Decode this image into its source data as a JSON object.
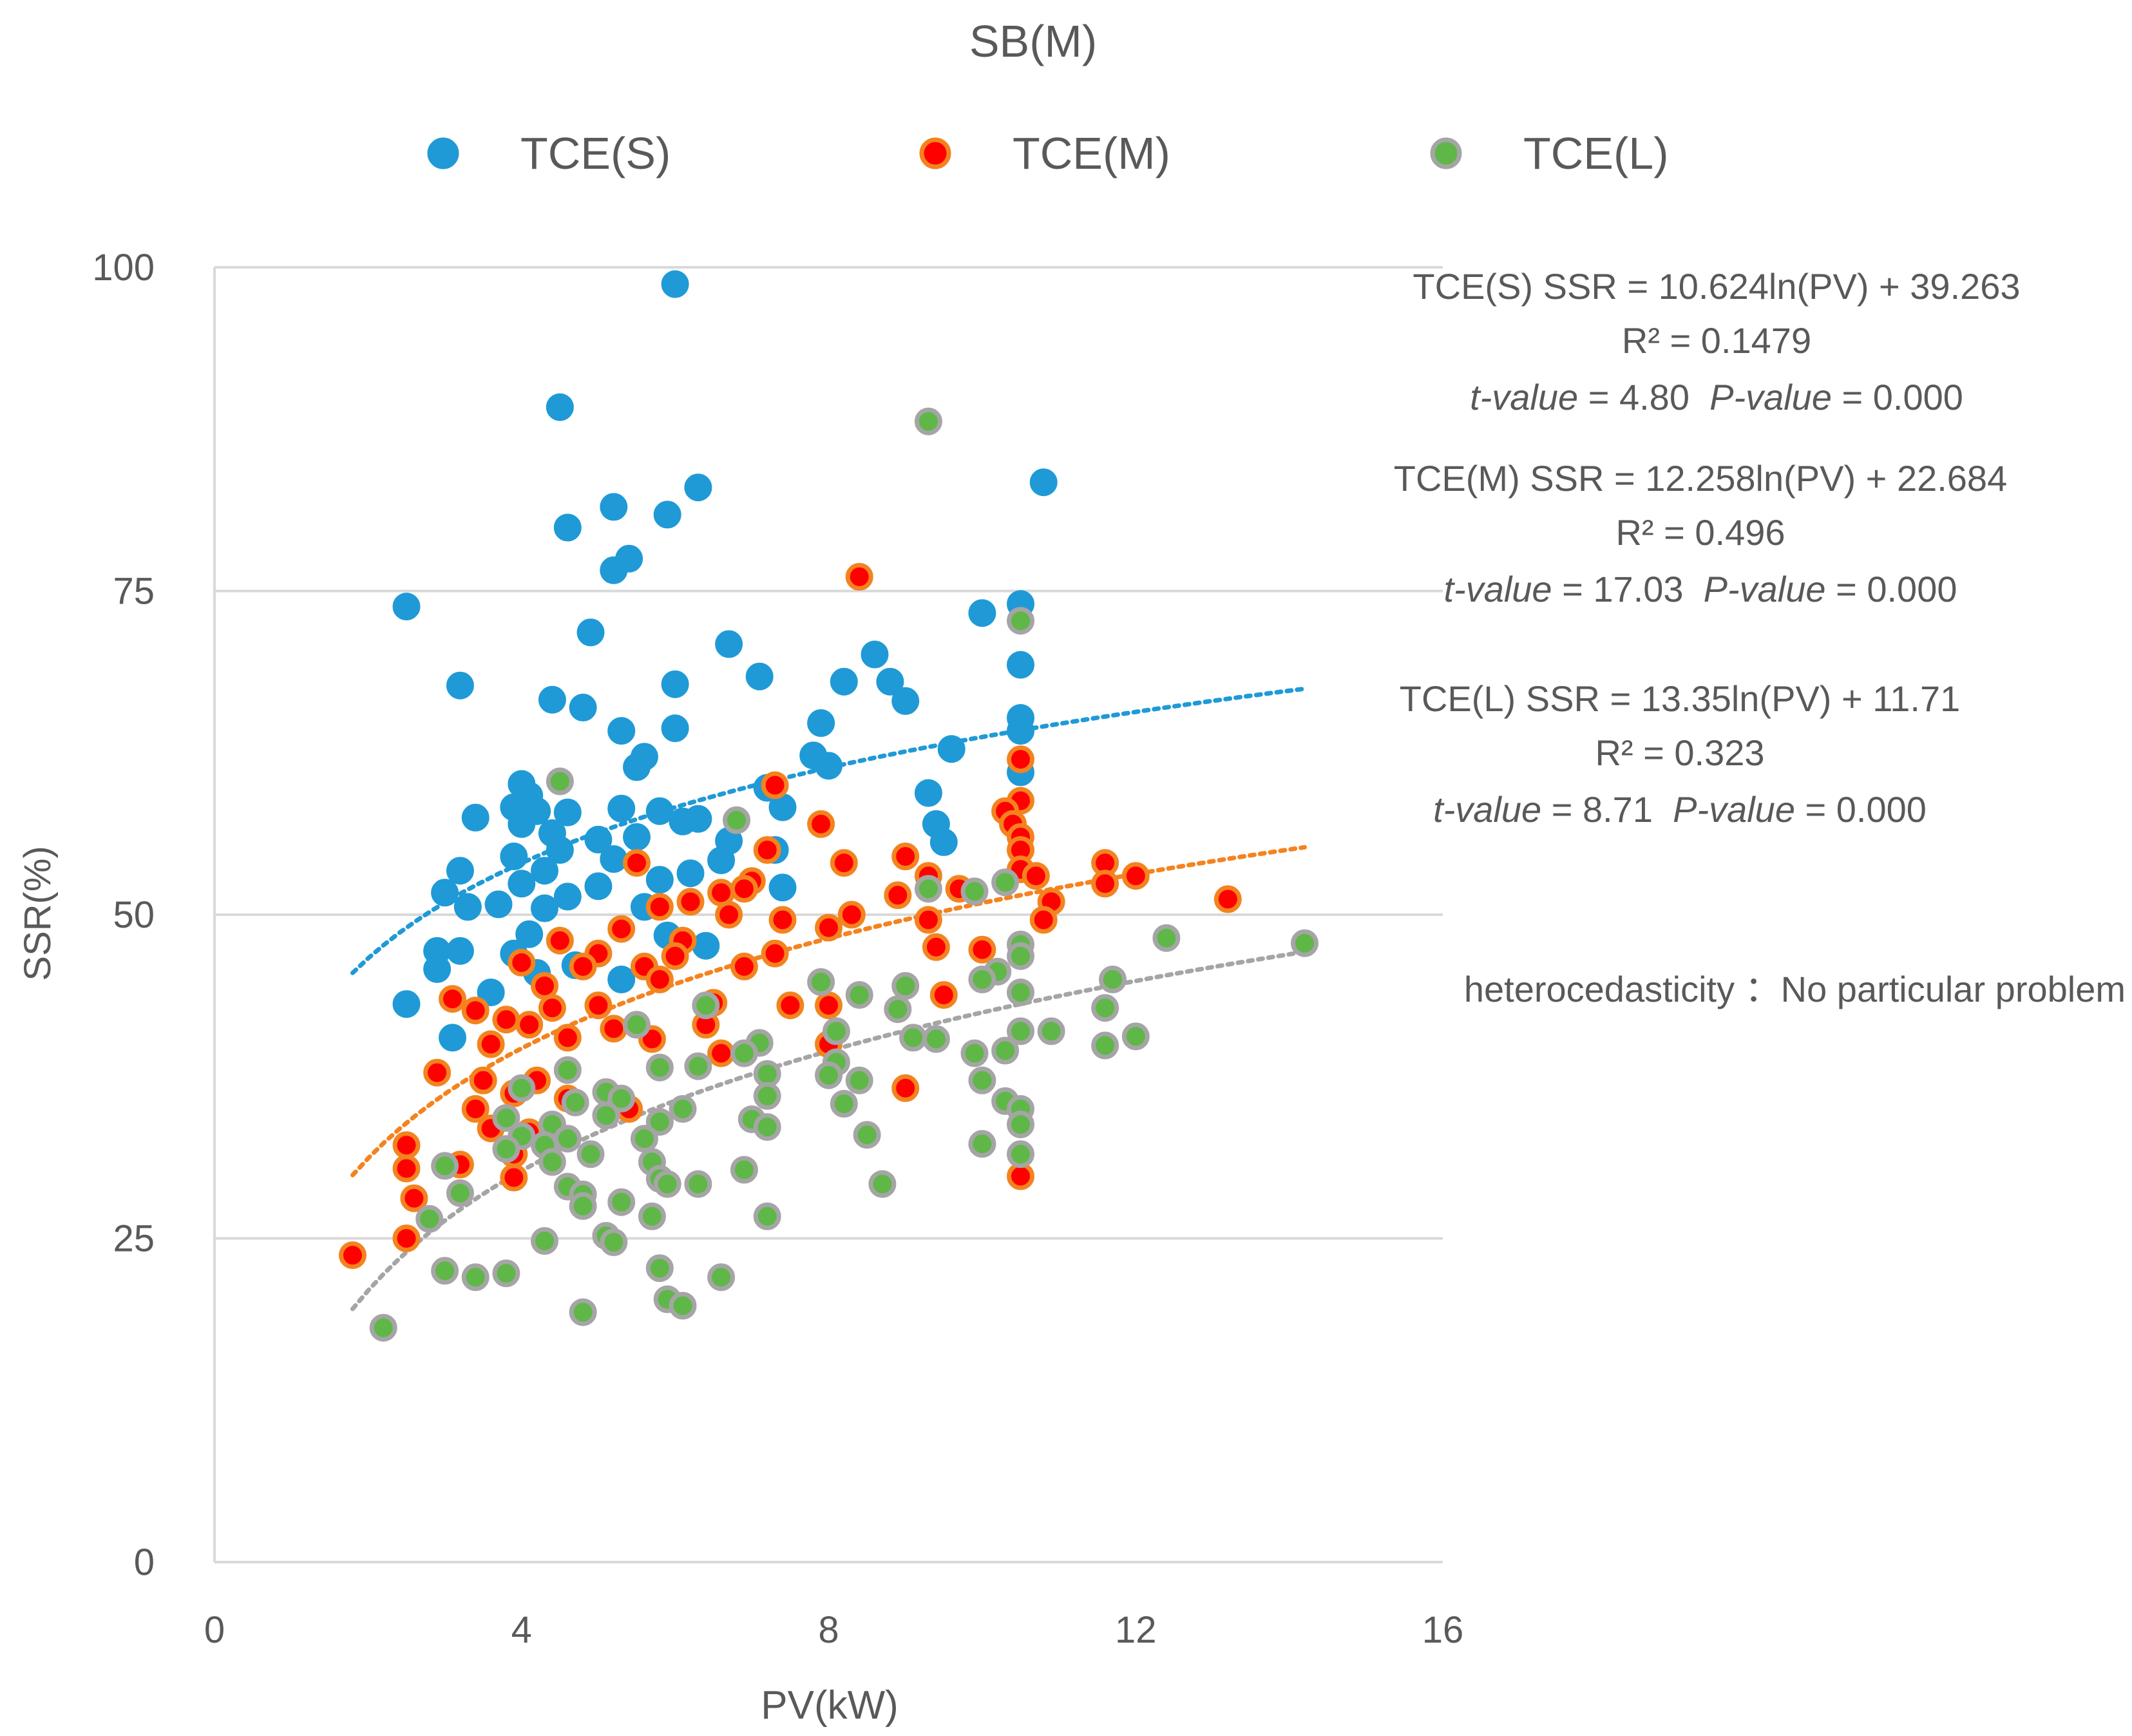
{
  "chart_data": {
    "type": "scatter",
    "title": "SB(M)",
    "xlabel": "PV(kW)",
    "ylabel": "SSR(%)",
    "xlim": [
      0,
      16
    ],
    "ylim": [
      0,
      100
    ],
    "x_ticks": [
      "0",
      "4",
      "8",
      "12",
      "16"
    ],
    "y_ticks": [
      "0",
      "25",
      "50",
      "75",
      "100"
    ],
    "grid": "horizontal",
    "legend_position": "top",
    "series": [
      {
        "name": "TCE(S)",
        "marker_color": "#1f9ad6",
        "marker_edge": "#1f9ad6",
        "trend_color": "#1f9ad6",
        "trend": {
          "a": 10.624,
          "b": 39.263,
          "x_from": 1.8,
          "x_to": 14.2
        },
        "points": [
          [
            6.0,
            98.7
          ],
          [
            4.5,
            89.2
          ],
          [
            10.8,
            83.4
          ],
          [
            6.3,
            83.0
          ],
          [
            5.2,
            81.5
          ],
          [
            5.9,
            80.9
          ],
          [
            4.6,
            79.9
          ],
          [
            5.4,
            77.5
          ],
          [
            5.2,
            76.6
          ],
          [
            2.5,
            73.8
          ],
          [
            10.5,
            74.0
          ],
          [
            10.0,
            73.3
          ],
          [
            4.9,
            71.8
          ],
          [
            6.7,
            70.9
          ],
          [
            8.6,
            70.1
          ],
          [
            10.5,
            69.3
          ],
          [
            7.1,
            68.4
          ],
          [
            8.8,
            68.0
          ],
          [
            8.2,
            68.0
          ],
          [
            3.2,
            67.7
          ],
          [
            6.0,
            67.8
          ],
          [
            4.4,
            66.6
          ],
          [
            9.0,
            66.5
          ],
          [
            4.8,
            66.0
          ],
          [
            10.5,
            65.2
          ],
          [
            7.9,
            64.8
          ],
          [
            10.5,
            64.2
          ],
          [
            6.0,
            64.4
          ],
          [
            5.3,
            64.2
          ],
          [
            9.6,
            62.8
          ],
          [
            7.8,
            62.3
          ],
          [
            5.6,
            62.2
          ],
          [
            5.5,
            61.4
          ],
          [
            8.0,
            61.5
          ],
          [
            10.5,
            61.0
          ],
          [
            4.0,
            60.1
          ],
          [
            7.2,
            59.8
          ],
          [
            4.1,
            59.2
          ],
          [
            9.3,
            59.4
          ],
          [
            3.9,
            58.3
          ],
          [
            7.4,
            58.3
          ],
          [
            4.2,
            58.0
          ],
          [
            4.6,
            57.9
          ],
          [
            5.3,
            58.2
          ],
          [
            5.8,
            58.0
          ],
          [
            6.1,
            57.2
          ],
          [
            6.3,
            57.4
          ],
          [
            3.4,
            57.5
          ],
          [
            9.4,
            57.0
          ],
          [
            4.0,
            57.0
          ],
          [
            4.4,
            56.3
          ],
          [
            5.0,
            55.8
          ],
          [
            5.5,
            56.0
          ],
          [
            6.7,
            55.7
          ],
          [
            9.5,
            55.6
          ],
          [
            7.3,
            55.0
          ],
          [
            4.5,
            55.0
          ],
          [
            5.2,
            54.3
          ],
          [
            6.6,
            54.2
          ],
          [
            3.9,
            54.5
          ],
          [
            4.3,
            53.4
          ],
          [
            6.2,
            53.2
          ],
          [
            3.2,
            53.4
          ],
          [
            5.8,
            52.7
          ],
          [
            7.4,
            52.1
          ],
          [
            4.0,
            52.4
          ],
          [
            5.0,
            52.2
          ],
          [
            3.0,
            51.7
          ],
          [
            4.6,
            51.4
          ],
          [
            3.3,
            50.6
          ],
          [
            5.6,
            50.6
          ],
          [
            4.3,
            50.5
          ],
          [
            3.7,
            50.8
          ],
          [
            2.9,
            47.2
          ],
          [
            3.2,
            47.2
          ],
          [
            2.9,
            45.8
          ],
          [
            3.9,
            47.0
          ],
          [
            4.1,
            48.5
          ],
          [
            6.4,
            47.6
          ],
          [
            5.9,
            48.4
          ],
          [
            2.5,
            43.1
          ],
          [
            3.6,
            44.0
          ],
          [
            3.1,
            40.5
          ],
          [
            4.2,
            45.5
          ],
          [
            4.7,
            46.1
          ],
          [
            5.3,
            45.0
          ]
        ]
      },
      {
        "name": "TCE(M)",
        "marker_color": "#ff0000",
        "marker_edge": "#f4831f",
        "trend_color": "#f4831f",
        "trend": {
          "a": 12.258,
          "b": 22.684,
          "x_from": 1.8,
          "x_to": 14.2
        },
        "points": [
          [
            8.4,
            76.1
          ],
          [
            10.5,
            62.0
          ],
          [
            7.3,
            60.0
          ],
          [
            10.5,
            58.8
          ],
          [
            10.3,
            58.0
          ],
          [
            10.4,
            57.0
          ],
          [
            7.9,
            57.0
          ],
          [
            10.5,
            56.0
          ],
          [
            7.2,
            55.0
          ],
          [
            10.5,
            55.0
          ],
          [
            9.0,
            54.5
          ],
          [
            8.2,
            54.0
          ],
          [
            5.5,
            54.0
          ],
          [
            11.6,
            54.0
          ],
          [
            10.5,
            53.5
          ],
          [
            10.7,
            53.0
          ],
          [
            12.0,
            53.0
          ],
          [
            9.3,
            53.0
          ],
          [
            7.0,
            52.6
          ],
          [
            11.6,
            52.4
          ],
          [
            6.9,
            52.0
          ],
          [
            9.7,
            52.0
          ],
          [
            6.6,
            51.7
          ],
          [
            8.9,
            51.5
          ],
          [
            10.9,
            51.0
          ],
          [
            13.2,
            51.2
          ],
          [
            6.2,
            51.0
          ],
          [
            5.8,
            50.6
          ],
          [
            8.3,
            50.0
          ],
          [
            9.3,
            49.6
          ],
          [
            10.8,
            49.6
          ],
          [
            6.7,
            50.0
          ],
          [
            7.4,
            49.6
          ],
          [
            8.0,
            49.0
          ],
          [
            5.3,
            48.9
          ],
          [
            6.1,
            48.0
          ],
          [
            4.5,
            48.0
          ],
          [
            9.4,
            47.5
          ],
          [
            10.0,
            47.3
          ],
          [
            5.0,
            47.0
          ],
          [
            7.3,
            47.0
          ],
          [
            6.0,
            46.8
          ],
          [
            4.0,
            46.3
          ],
          [
            4.8,
            46.0
          ],
          [
            5.6,
            46.0
          ],
          [
            3.1,
            43.5
          ],
          [
            3.4,
            42.6
          ],
          [
            4.4,
            42.8
          ],
          [
            5.0,
            43.0
          ],
          [
            6.5,
            43.2
          ],
          [
            8.0,
            43.0
          ],
          [
            7.5,
            43.0
          ],
          [
            9.5,
            43.8
          ],
          [
            3.8,
            41.9
          ],
          [
            4.1,
            41.5
          ],
          [
            5.2,
            41.2
          ],
          [
            6.4,
            41.5
          ],
          [
            4.6,
            40.5
          ],
          [
            3.6,
            40.0
          ],
          [
            8.0,
            40.0
          ],
          [
            5.7,
            40.4
          ],
          [
            6.6,
            39.3
          ],
          [
            2.9,
            37.8
          ],
          [
            3.5,
            37.2
          ],
          [
            4.2,
            37.2
          ],
          [
            3.9,
            36.2
          ],
          [
            9.0,
            36.6
          ],
          [
            4.6,
            35.8
          ],
          [
            3.4,
            35.0
          ],
          [
            5.4,
            35.0
          ],
          [
            3.6,
            33.5
          ],
          [
            4.1,
            33.2
          ],
          [
            3.9,
            31.5
          ],
          [
            2.5,
            32.2
          ],
          [
            3.2,
            30.7
          ],
          [
            3.9,
            29.7
          ],
          [
            2.6,
            28.1
          ],
          [
            2.5,
            30.4
          ],
          [
            10.5,
            29.8
          ],
          [
            1.8,
            23.7
          ],
          [
            2.5,
            25.0
          ],
          [
            4.3,
            44.5
          ],
          [
            5.8,
            45.0
          ],
          [
            6.9,
            46.0
          ]
        ]
      },
      {
        "name": "TCE(L)",
        "marker_color": "#5fb748",
        "marker_edge": "#a5a5a5",
        "trend_color": "#a5a5a5",
        "trend": {
          "a": 13.35,
          "b": 11.71,
          "x_from": 1.8,
          "x_to": 14.2
        },
        "points": [
          [
            9.3,
            88.1
          ],
          [
            10.5,
            72.7
          ],
          [
            4.5,
            60.3
          ],
          [
            6.8,
            57.3
          ],
          [
            10.3,
            52.5
          ],
          [
            9.3,
            52.0
          ],
          [
            9.9,
            51.8
          ],
          [
            12.4,
            48.2
          ],
          [
            14.2,
            47.8
          ],
          [
            10.5,
            47.7
          ],
          [
            10.5,
            46.8
          ],
          [
            10.2,
            45.6
          ],
          [
            10.0,
            45.0
          ],
          [
            11.7,
            45.0
          ],
          [
            7.9,
            44.8
          ],
          [
            9.0,
            44.5
          ],
          [
            8.4,
            43.8
          ],
          [
            10.5,
            44.0
          ],
          [
            8.9,
            42.7
          ],
          [
            11.6,
            42.8
          ],
          [
            6.4,
            43.0
          ],
          [
            5.5,
            41.5
          ],
          [
            10.5,
            41.0
          ],
          [
            10.9,
            41.0
          ],
          [
            8.1,
            41.0
          ],
          [
            9.1,
            40.5
          ],
          [
            9.4,
            40.4
          ],
          [
            11.6,
            39.9
          ],
          [
            12.0,
            40.6
          ],
          [
            7.1,
            40.1
          ],
          [
            9.9,
            39.3
          ],
          [
            10.3,
            39.5
          ],
          [
            6.9,
            39.3
          ],
          [
            8.1,
            38.6
          ],
          [
            6.3,
            38.3
          ],
          [
            7.2,
            37.7
          ],
          [
            8.0,
            37.6
          ],
          [
            4.6,
            38.0
          ],
          [
            5.8,
            38.2
          ],
          [
            8.4,
            37.2
          ],
          [
            10.0,
            37.2
          ],
          [
            4.0,
            36.6
          ],
          [
            5.1,
            36.3
          ],
          [
            7.2,
            36.0
          ],
          [
            5.3,
            35.8
          ],
          [
            10.3,
            35.6
          ],
          [
            10.5,
            35.0
          ],
          [
            8.2,
            35.4
          ],
          [
            4.7,
            35.5
          ],
          [
            6.1,
            35.0
          ],
          [
            5.8,
            34.0
          ],
          [
            7.0,
            34.2
          ],
          [
            3.8,
            34.3
          ],
          [
            4.4,
            33.8
          ],
          [
            5.1,
            34.5
          ],
          [
            4.0,
            32.9
          ],
          [
            4.6,
            32.7
          ],
          [
            8.5,
            33.0
          ],
          [
            5.6,
            32.7
          ],
          [
            7.2,
            33.6
          ],
          [
            10.5,
            33.8
          ],
          [
            3.8,
            31.9
          ],
          [
            4.3,
            32.2
          ],
          [
            4.9,
            31.5
          ],
          [
            10.0,
            32.3
          ],
          [
            10.5,
            31.5
          ],
          [
            5.7,
            30.9
          ],
          [
            4.4,
            30.9
          ],
          [
            3.0,
            30.6
          ],
          [
            6.9,
            30.3
          ],
          [
            5.8,
            29.6
          ],
          [
            5.9,
            29.2
          ],
          [
            6.3,
            29.2
          ],
          [
            4.6,
            29.0
          ],
          [
            8.7,
            29.2
          ],
          [
            3.2,
            28.5
          ],
          [
            4.8,
            28.4
          ],
          [
            5.3,
            27.8
          ],
          [
            4.8,
            27.5
          ],
          [
            2.8,
            26.5
          ],
          [
            5.7,
            26.7
          ],
          [
            7.2,
            26.7
          ],
          [
            4.3,
            24.8
          ],
          [
            5.1,
            25.2
          ],
          [
            5.2,
            24.7
          ],
          [
            3.0,
            22.5
          ],
          [
            3.4,
            22.0
          ],
          [
            3.8,
            22.3
          ],
          [
            5.8,
            22.7
          ],
          [
            6.6,
            22.0
          ],
          [
            5.9,
            20.3
          ],
          [
            6.1,
            19.8
          ],
          [
            4.8,
            19.3
          ],
          [
            2.2,
            18.1
          ]
        ]
      }
    ],
    "annotations": [
      {
        "series": "TCE(S)",
        "line1": "TCE(S)  SSR = 10.624ln(PV) + 39.263",
        "line2": "R² = 0.1479",
        "t_label": "t-value",
        "t_value": " = 4.80  ",
        "p_label": "P-value",
        "p_value": " = 0.000"
      },
      {
        "series": "TCE(M)",
        "line1": "TCE(M)  SSR = 12.258ln(PV) + 22.684",
        "line2": "R² = 0.496",
        "t_label": "t-value",
        "t_value": " = 17.03  ",
        "p_label": "P-value",
        "p_value": " = 0.000"
      },
      {
        "series": "TCE(L)",
        "line1": "TCE(L)  SSR = 13.35ln(PV) + 11.71",
        "line2": "R² = 0.323",
        "t_label": "t-value",
        "t_value": " = 8.71  ",
        "p_label": "P-value",
        "p_value": " = 0.000"
      }
    ],
    "note": "heterocedasticity ：No particular problem"
  }
}
